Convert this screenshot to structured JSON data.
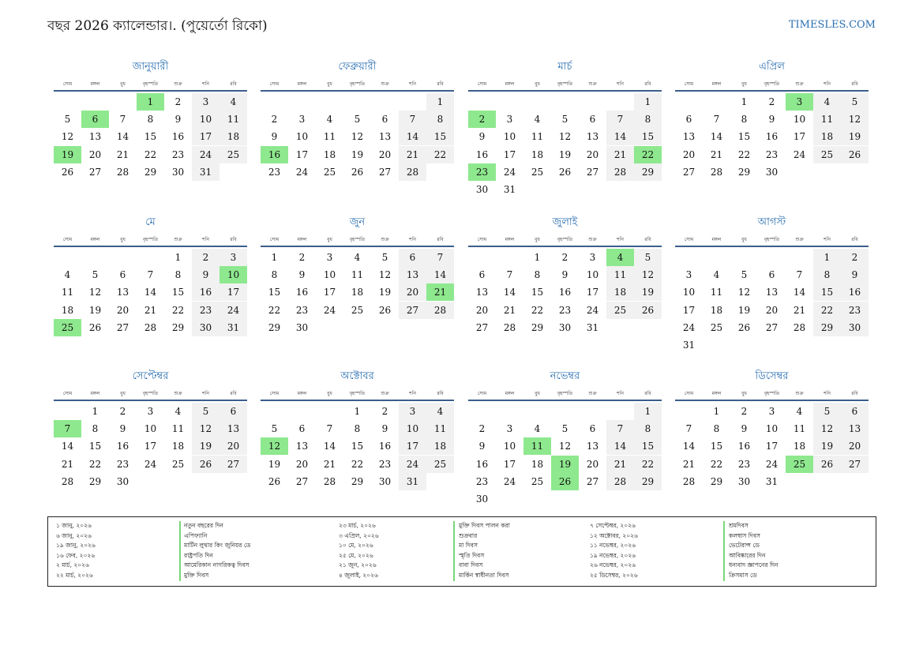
{
  "header": {
    "title": "বছর 2026 ক্যালেন্ডার।. (পুয়ের্তো রিকো)",
    "site": "TIMESLES.COM"
  },
  "weekdays": [
    "সোম",
    "মঙ্গল",
    "বুধ",
    "বৃহস্পতি",
    "শুক্র",
    "শনি",
    "রবি"
  ],
  "colors": {
    "accent": "#2a6fb0",
    "holiday": "#8ee88e",
    "weekend": "#f1f1f1",
    "rule": "#3b5e8c"
  },
  "months": [
    {
      "name": "জানুয়ারী",
      "offset": 3,
      "days": 31,
      "holidays": [
        1,
        6,
        19
      ]
    },
    {
      "name": "ফেব্রুয়ারী",
      "offset": 6,
      "days": 28,
      "holidays": [
        16
      ]
    },
    {
      "name": "মার্চ",
      "offset": 6,
      "days": 31,
      "holidays": [
        2,
        22,
        23
      ]
    },
    {
      "name": "এপ্রিল",
      "offset": 2,
      "days": 30,
      "holidays": [
        3
      ]
    },
    {
      "name": "মে",
      "offset": 4,
      "days": 31,
      "holidays": [
        10,
        25
      ]
    },
    {
      "name": "জুন",
      "offset": 0,
      "days": 30,
      "holidays": [
        21
      ]
    },
    {
      "name": "জুলাই",
      "offset": 2,
      "days": 31,
      "holidays": [
        4
      ]
    },
    {
      "name": "আগস্ট",
      "offset": 5,
      "days": 31,
      "holidays": []
    },
    {
      "name": "সেপ্টেম্বর",
      "offset": 1,
      "days": 30,
      "holidays": [
        7
      ]
    },
    {
      "name": "অক্টোবর",
      "offset": 3,
      "days": 31,
      "holidays": [
        12
      ]
    },
    {
      "name": "নভেম্বর",
      "offset": 6,
      "days": 30,
      "holidays": [
        11,
        19,
        26
      ]
    },
    {
      "name": "ডিসেম্বর",
      "offset": 1,
      "days": 31,
      "holidays": [
        25
      ]
    }
  ],
  "holiday_list": [
    [
      {
        "date": "১ জানু, ২০২৬",
        "name": "নতুন বছরের দিন"
      },
      {
        "date": "৬ জানু, ২০২৬",
        "name": "এপিফ্যানি"
      },
      {
        "date": "১৯ জানু, ২০২৬",
        "name": "মার্টিন লুথার কিং জুনিয়র ডে"
      },
      {
        "date": "১৬ ফেব, ২০২৬",
        "name": "রাষ্ট্রপতি দিন"
      },
      {
        "date": "২ মার্চ, ২০২৬",
        "name": "আমেরিকান নাগরিকত্ব দিবস"
      },
      {
        "date": "২২ মার্চ, ২০২৬",
        "name": "মুক্তি দিবস"
      }
    ],
    [
      {
        "date": "২৩ মার্চ, ২০২৬",
        "name": "মুক্তি দিবস পালন করা"
      },
      {
        "date": "৩ এপ্রিল, ২০২৬",
        "name": "শুক্রবার"
      },
      {
        "date": "১০ মে, ২০২৬",
        "name": "মা দিবস"
      },
      {
        "date": "২৫ মে, ২০২৬",
        "name": "স্মৃতি দিবস"
      },
      {
        "date": "২১ জুন, ২০২৬",
        "name": "বাবা দিবস"
      },
      {
        "date": "৪ জুলাই, ২০২৬",
        "name": "মার্কিন স্বাধীনতা দিবস"
      }
    ],
    [
      {
        "date": "৭ সেপ্টেম্বর, ২০২৬",
        "name": "শ্রমদিবস"
      },
      {
        "date": "১২ অক্টোবর, ২০২৬",
        "name": "কলম্বাস দিবস"
      },
      {
        "date": "১১ নভেম্বর, ২০২৬",
        "name": "ভেটেরান্স ডে"
      },
      {
        "date": "১৯ নভেম্বর, ২০২৬",
        "name": "আবিষ্কারের দিন"
      },
      {
        "date": "২৬ নভেম্বর, ২০২৬",
        "name": "ধন্যবাদ জ্ঞাপনের দিন"
      },
      {
        "date": "২৫ ডিসেম্বর, ২০২৬",
        "name": "ক্রিসমাস ডে"
      }
    ]
  ]
}
